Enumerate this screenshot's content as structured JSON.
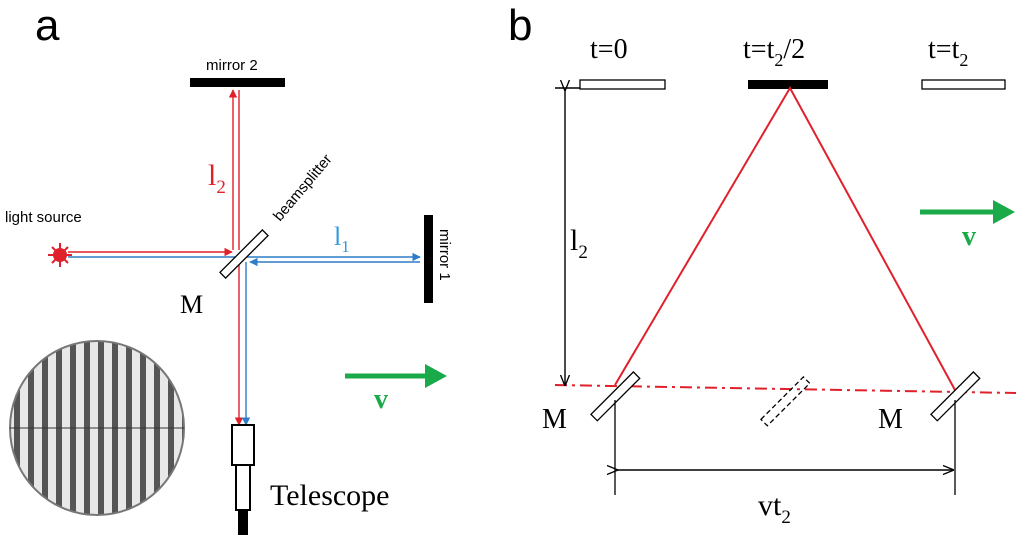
{
  "panel_a": {
    "label": "a",
    "mirror_2": "mirror 2",
    "beamsplitter": "beamsplitter",
    "path_2": {
      "main": "l",
      "sub": "2"
    },
    "light_source": "light source",
    "path_1": {
      "main": "l",
      "sub": "1"
    },
    "mirror_1": "mirror 1",
    "splitter_label": "M",
    "velocity": "v",
    "telescope": "Telescope"
  },
  "panel_b": {
    "label": "b",
    "time_0": "t=0",
    "time_half": {
      "main": "t=t",
      "sub": "2",
      "tail": "/2"
    },
    "time_end": {
      "main": "t=t",
      "sub": "2"
    },
    "path_2": {
      "main": "l",
      "sub": "2"
    },
    "velocity": "v",
    "splitter_left": "M",
    "splitter_right": "M",
    "displacement": {
      "main": "vt",
      "sub": "2"
    }
  }
}
